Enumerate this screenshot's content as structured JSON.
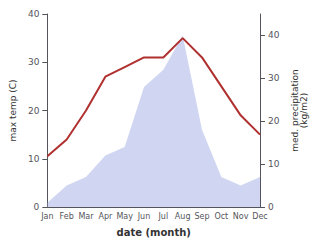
{
  "chart_data": {
    "type": "line",
    "xlabel": "date (month)",
    "ylabel": "max temp (C)",
    "y2label": "med. precipitation\n(kg/m2)",
    "categories": [
      "Jan",
      "Feb",
      "Mar",
      "Apr",
      "May",
      "Jun",
      "Jul",
      "Aug",
      "Sep",
      "Oct",
      "Nov",
      "Dec"
    ],
    "series": [
      {
        "type": "area",
        "color": "#aab4e8",
        "axis": "y2",
        "values": [
          1,
          5,
          7,
          12,
          14,
          28,
          32,
          40,
          18,
          7,
          5,
          7
        ]
      },
      {
        "type": "line",
        "color": "#b03030",
        "values": [
          10.5,
          14,
          20,
          27,
          29,
          31,
          31,
          35,
          31,
          25,
          19,
          15
        ]
      }
    ],
    "ylim": [
      0,
      40
    ],
    "yticks": [
      0,
      10,
      20,
      30,
      40
    ],
    "y2lim": [
      0,
      45
    ],
    "y2ticks": [
      0,
      10,
      20,
      30,
      40
    ],
    "grid": false
  }
}
